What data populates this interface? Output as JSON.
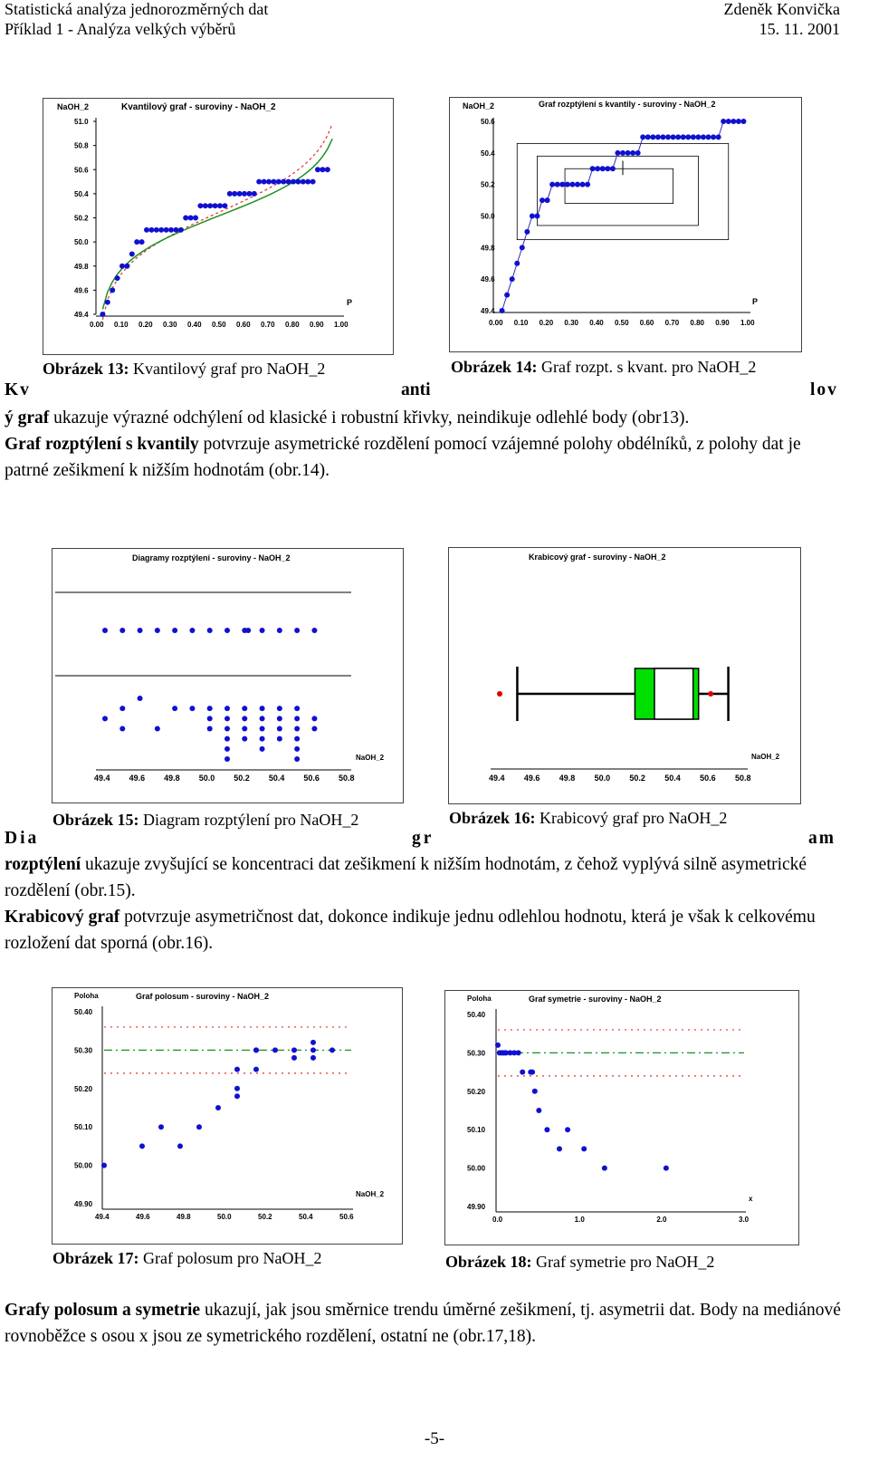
{
  "header": {
    "left_line1": "Statistická analýza jednorozměrných dat",
    "left_line2": "Příklad 1 - Analýza velkých výběrů",
    "right_line1": "Zdeněk Konvička",
    "right_line2": "15. 11. 2001"
  },
  "figures": {
    "f13": {
      "label": "Obrázek 13:",
      "caption": " Kvantilový graf pro NaOH_2",
      "title": "Kvantilový graf - suroviny - NaOH_2",
      "ylabel": "NaOH_2",
      "xlabel": "P",
      "yticks": [
        "51.0",
        "50.8",
        "50.6",
        "50.4",
        "50.2",
        "50.0",
        "49.8",
        "49.6",
        "49.4"
      ],
      "xticks": [
        "0.00",
        "0.10",
        "0.20",
        "0.30",
        "0.40",
        "0.50",
        "0.60",
        "0.70",
        "0.80",
        "0.90",
        "1.00"
      ]
    },
    "f14": {
      "label": "Obrázek 14:",
      "caption": " Graf rozpt. s kvant. pro NaOH_2",
      "title": "Graf rozptýlení s kvantily - suroviny - NaOH_2",
      "ylabel": "NaOH_2",
      "xlabel": "P",
      "yticks": [
        "50.6",
        "50.4",
        "50.2",
        "50.0",
        "49.8",
        "49.6",
        "49.4"
      ],
      "xticks": [
        "0.00",
        "0.10",
        "0.20",
        "0.30",
        "0.40",
        "0.50",
        "0.60",
        "0.70",
        "0.80",
        "0.90",
        "1.00"
      ]
    },
    "f15": {
      "label": "Obrázek 15:",
      "caption": " Diagram rozptýlení pro NaOH_2",
      "title": "Diagramy rozptýlení - suroviny - NaOH_2",
      "xlabel": "NaOH_2",
      "xticks": [
        "49.4",
        "49.6",
        "49.8",
        "50.0",
        "50.2",
        "50.4",
        "50.6",
        "50.8"
      ]
    },
    "f16": {
      "label": "Obrázek 16:",
      "caption": " Krabicový graf pro NaOH_2",
      "title": "Krabicový graf - suroviny - NaOH_2",
      "xlabel": "NaOH_2",
      "xticks": [
        "49.4",
        "49.6",
        "49.8",
        "50.0",
        "50.2",
        "50.4",
        "50.6",
        "50.8"
      ]
    },
    "f17": {
      "label": "Obrázek 17:",
      "caption": " Graf polosum pro NaOH_2",
      "title": "Graf polosum - suroviny - NaOH_2",
      "ylabel": "Poloha",
      "xlabel": "NaOH_2",
      "yticks": [
        "50.40",
        "50.30",
        "50.20",
        "50.10",
        "50.00",
        "49.90"
      ],
      "xticks": [
        "49.4",
        "49.6",
        "49.8",
        "50.0",
        "50.2",
        "50.4",
        "50.6"
      ]
    },
    "f18": {
      "label": "Obrázek 18:",
      "caption": " Graf symetrie pro NaOH_2",
      "title": "Graf symetrie - suroviny - NaOH_2",
      "ylabel": "Poloha",
      "xlabel": "x",
      "yticks": [
        "50.40",
        "50.30",
        "50.20",
        "50.10",
        "50.00",
        "49.90"
      ],
      "xticks": [
        "0.0",
        "1.0",
        "2.0",
        "3.0"
      ]
    }
  },
  "spread1": [
    "Kv",
    "anti",
    "lov"
  ],
  "spread2": [
    "Dia",
    "gr",
    "am"
  ],
  "para1": {
    "b1": "ý graf",
    "t1": " ukazuje výrazné odchýlení od  klasické i robustní křivky, neindikuje odlehlé body (obr13).",
    "b2": "Graf rozptýlení s kvantily",
    "t2": " potvrzuje asymetrické rozdělení pomocí vzájemné polohy obdélníků, z polohy dat je patrné zešikmení k nižším hodnotám (obr.14)."
  },
  "para2": {
    "b1": "rozptýlení",
    "t1": " ukazuje zvyšující se koncentraci dat zešikmení k nižším hodnotám, z čehož vyplývá silně asymetrické rozdělení (obr.15).",
    "b2": "Krabicový graf",
    "t2": " potvrzuje asymetričnost dat, dokonce indikuje jednu odlehlou hodnotu, která je však k celkovému rozložení dat sporná (obr.16)."
  },
  "para3": {
    "b1": "Grafy polosum a symetrie",
    "t1": " ukazují, jak jsou směrnice trendu úměrné zešikmení, tj. asymetrii dat. Body na mediánové rovnoběžce s osou x jsou ze symetrického rozdělení, ostatní ne  (obr.17,18)."
  },
  "page_number": "-5-",
  "colors": {
    "point": "#1010d0",
    "box_fill": "#00e000",
    "outlier": "#e00000",
    "curve": "#209020",
    "dashed": "#e03030"
  },
  "chart_data": [
    {
      "type": "scatter",
      "id": "qq",
      "x": [
        0.02,
        0.04,
        0.06,
        0.08,
        0.1,
        0.12,
        0.14,
        0.16,
        0.18,
        0.2,
        0.22,
        0.24,
        0.26,
        0.28,
        0.3,
        0.32,
        0.34,
        0.36,
        0.38,
        0.4,
        0.42,
        0.44,
        0.46,
        0.48,
        0.5,
        0.52,
        0.54,
        0.56,
        0.58,
        0.6,
        0.62,
        0.64,
        0.66,
        0.68,
        0.7,
        0.72,
        0.74,
        0.76,
        0.78,
        0.8,
        0.82,
        0.84,
        0.86,
        0.88,
        0.9,
        0.92,
        0.94
      ],
      "y": [
        49.4,
        49.5,
        49.6,
        49.7,
        49.8,
        49.8,
        49.9,
        50.0,
        50.0,
        50.1,
        50.1,
        50.1,
        50.1,
        50.1,
        50.1,
        50.1,
        50.1,
        50.2,
        50.2,
        50.2,
        50.3,
        50.3,
        50.3,
        50.3,
        50.3,
        50.3,
        50.4,
        50.4,
        50.4,
        50.4,
        50.4,
        50.4,
        50.5,
        50.5,
        50.5,
        50.5,
        50.5,
        50.5,
        50.5,
        50.5,
        50.5,
        50.5,
        50.5,
        50.5,
        50.6,
        50.6,
        50.6
      ],
      "xlim": [
        0,
        1
      ],
      "ylim": [
        49.4,
        51.0
      ]
    },
    {
      "type": "scatter",
      "id": "quantile",
      "x": [
        0.02,
        0.04,
        0.06,
        0.08,
        0.1,
        0.12,
        0.14,
        0.16,
        0.18,
        0.2,
        0.22,
        0.24,
        0.26,
        0.28,
        0.3,
        0.32,
        0.34,
        0.36,
        0.38,
        0.4,
        0.42,
        0.44,
        0.46,
        0.48,
        0.5,
        0.52,
        0.54,
        0.56,
        0.58,
        0.6,
        0.62,
        0.64,
        0.66,
        0.68,
        0.7,
        0.72,
        0.74,
        0.76,
        0.78,
        0.8,
        0.82,
        0.84,
        0.86,
        0.88,
        0.9,
        0.92,
        0.94,
        0.96,
        0.98
      ],
      "y": [
        49.4,
        49.5,
        49.6,
        49.7,
        49.8,
        49.9,
        50.0,
        50.0,
        50.1,
        50.1,
        50.2,
        50.2,
        50.2,
        50.2,
        50.2,
        50.2,
        50.2,
        50.2,
        50.3,
        50.3,
        50.3,
        50.3,
        50.3,
        50.4,
        50.4,
        50.4,
        50.4,
        50.4,
        50.5,
        50.5,
        50.5,
        50.5,
        50.5,
        50.5,
        50.5,
        50.5,
        50.5,
        50.5,
        50.5,
        50.5,
        50.5,
        50.5,
        50.5,
        50.5,
        50.6,
        50.6,
        50.6,
        50.6,
        50.6
      ],
      "xlim": [
        0,
        1
      ],
      "ylim": [
        49.4,
        50.6
      ]
    },
    {
      "type": "scatter",
      "id": "dotplot",
      "top_x": [
        49.4,
        49.5,
        49.6,
        49.7,
        49.8,
        49.9,
        50.0,
        50.1,
        50.2,
        50.22,
        50.3,
        50.4,
        50.5,
        50.6
      ],
      "bottom": [
        [
          49.4,
          0
        ],
        [
          49.5,
          -1
        ],
        [
          49.5,
          1
        ],
        [
          49.6,
          -2
        ],
        [
          49.7,
          1
        ],
        [
          49.8,
          -1
        ],
        [
          49.9,
          -1
        ],
        [
          50.0,
          -1
        ],
        [
          50.0,
          0
        ],
        [
          50.0,
          1
        ],
        [
          50.1,
          -1
        ],
        [
          50.1,
          0
        ],
        [
          50.1,
          1
        ],
        [
          50.1,
          2
        ],
        [
          50.1,
          3
        ],
        [
          50.1,
          4
        ],
        [
          50.2,
          -1
        ],
        [
          50.2,
          0
        ],
        [
          50.2,
          1
        ],
        [
          50.2,
          2
        ],
        [
          50.3,
          -1
        ],
        [
          50.3,
          0
        ],
        [
          50.3,
          1
        ],
        [
          50.3,
          2
        ],
        [
          50.3,
          3
        ],
        [
          50.4,
          -1
        ],
        [
          50.4,
          0
        ],
        [
          50.4,
          1
        ],
        [
          50.4,
          2
        ],
        [
          50.5,
          -1
        ],
        [
          50.5,
          0
        ],
        [
          50.5,
          1
        ],
        [
          50.5,
          2
        ],
        [
          50.5,
          3
        ],
        [
          50.5,
          4
        ],
        [
          50.6,
          0
        ],
        [
          50.6,
          1
        ]
      ],
      "xlim": [
        49.4,
        50.8
      ]
    },
    {
      "type": "box",
      "id": "box",
      "min": 49.5,
      "max": 50.7,
      "q1": 50.2,
      "median": 50.3,
      "q3": 50.5,
      "inner_left": 50.28,
      "inner_right": 50.5,
      "outliers": [
        49.4,
        50.6
      ],
      "xlim": [
        49.4,
        50.8
      ]
    },
    {
      "type": "scatter",
      "id": "halfsum",
      "x": [
        49.4,
        49.6,
        49.7,
        49.8,
        49.9,
        50.0,
        50.1,
        50.1,
        50.1,
        50.2,
        50.2,
        50.2,
        50.3,
        50.4,
        50.4,
        50.5,
        50.5,
        50.5,
        50.6
      ],
      "y": [
        50.0,
        50.05,
        50.1,
        50.05,
        50.1,
        50.15,
        50.18,
        50.2,
        50.25,
        50.25,
        50.3,
        50.3,
        50.3,
        50.28,
        50.3,
        50.3,
        50.32,
        50.28,
        50.3
      ],
      "xlim": [
        49.4,
        50.7
      ],
      "ylim": [
        49.9,
        50.4
      ],
      "median": 50.3,
      "band": [
        50.24,
        50.36
      ]
    },
    {
      "type": "scatter",
      "id": "symmetry",
      "x": [
        0.0,
        0.02,
        0.04,
        0.06,
        0.08,
        0.1,
        0.15,
        0.2,
        0.25,
        0.3,
        0.4,
        0.42,
        0.45,
        0.5,
        0.6,
        0.75,
        0.85,
        1.05,
        1.3,
        2.05
      ],
      "y": [
        50.32,
        50.3,
        50.3,
        50.3,
        50.3,
        50.3,
        50.3,
        50.3,
        50.3,
        50.25,
        50.25,
        50.25,
        50.2,
        50.15,
        50.1,
        50.05,
        50.1,
        50.05,
        50.0,
        50.0
      ],
      "xlim": [
        0,
        3.0
      ],
      "ylim": [
        49.9,
        50.4
      ],
      "median": 50.3,
      "band": [
        50.24,
        50.36
      ]
    }
  ]
}
